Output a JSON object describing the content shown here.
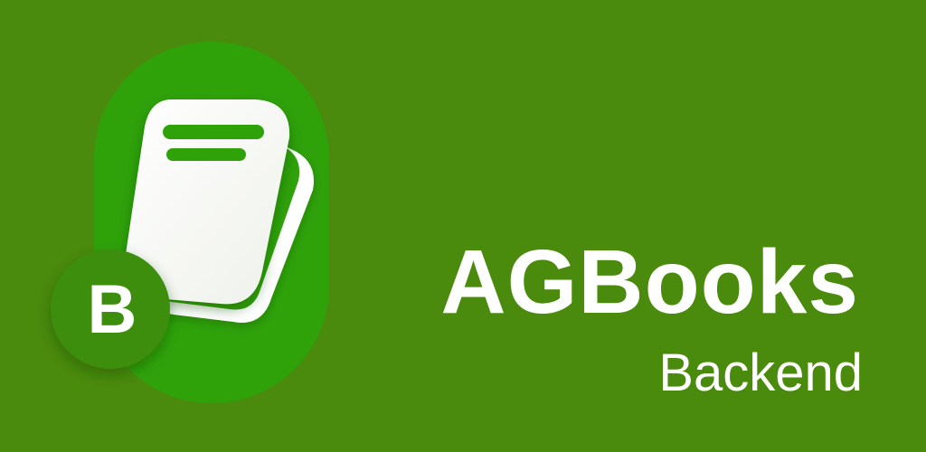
{
  "brand": {
    "name": "AGBooks",
    "subtitle": "Backend",
    "badge_letter": "B"
  },
  "icons": {
    "logo": "book-logo-icon",
    "badge": "letter-badge-icon"
  },
  "colors": {
    "background": "#4a8a0c",
    "logo_pill": "#2fa20a",
    "badge_circle": "#3e8e0b",
    "book_page": "#ffffff",
    "book_lines": "#2fa20a",
    "text": "#ffffff"
  }
}
